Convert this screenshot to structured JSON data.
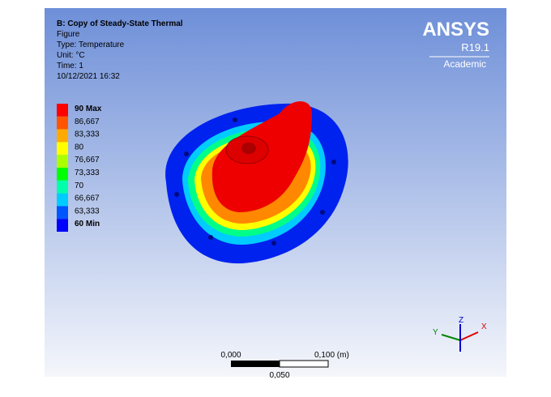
{
  "header": {
    "lines": [
      "B: Copy of Steady-State Thermal",
      "Figure",
      "Type: Temperature",
      "Unit: °C",
      "Time: 1",
      "10/12/2021 16:32"
    ]
  },
  "logo": {
    "brand": "ANSYS",
    "version": "R19.1",
    "edition": "Academic"
  },
  "legend": {
    "labels": [
      "90 Max",
      "86,667",
      "83,333",
      "80",
      "76,667",
      "73,333",
      "70",
      "66,667",
      "63,333",
      "60 Min"
    ],
    "colors": [
      "#ff0000",
      "#ff5500",
      "#ffaa00",
      "#ffff00",
      "#aaff00",
      "#00ff00",
      "#00ffaa",
      "#00ccff",
      "#0055ff",
      "#0000ff"
    ]
  },
  "scale_bar": {
    "start": "0,000",
    "end": "0,100 (m)",
    "middle": "0,050"
  },
  "triad": {
    "x": "X",
    "y": "Y",
    "z": "Z"
  }
}
